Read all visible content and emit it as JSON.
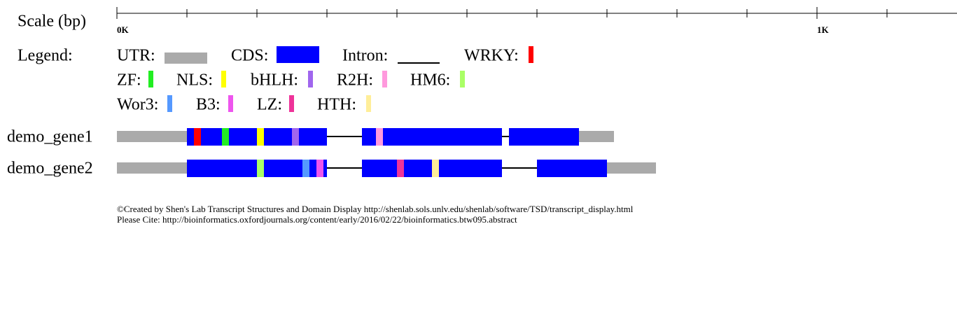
{
  "scale": {
    "label": "Scale (bp)",
    "xlim": [
      0,
      1200
    ],
    "labeled_ticks": [
      {
        "value": 0,
        "label": "0K"
      },
      {
        "value": 1000,
        "label": "1K"
      }
    ],
    "minor_ticks": [
      100,
      200,
      300,
      400,
      500,
      600,
      700,
      800,
      900,
      1100
    ]
  },
  "legend": {
    "title": "Legend:",
    "items": [
      {
        "label": "UTR:",
        "color": "#aaaaaa"
      },
      {
        "label": "CDS:",
        "color": "#0000ff"
      },
      {
        "label": "Intron:",
        "color": "#000000"
      },
      {
        "label": "WRKY:",
        "color": "#ff0000"
      },
      {
        "label": "ZF:",
        "color": "#22ee22"
      },
      {
        "label": "NLS:",
        "color": "#ffff00"
      },
      {
        "label": "bHLH:",
        "color": "#a066ee"
      },
      {
        "label": "R2H:",
        "color": "#ff99dd"
      },
      {
        "label": "HM6:",
        "color": "#aaff66"
      },
      {
        "label": "Wor3:",
        "color": "#5599ff"
      },
      {
        "label": "B3:",
        "color": "#ee55ee"
      },
      {
        "label": "LZ:",
        "color": "#ee3399"
      },
      {
        "label": "HTH:",
        "color": "#ffee99"
      }
    ]
  },
  "genes": [
    {
      "name": "demo_gene1",
      "utr": [
        [
          0,
          100
        ],
        [
          660,
          710
        ]
      ],
      "cds": [
        [
          100,
          300
        ],
        [
          350,
          550
        ],
        [
          560,
          660
        ]
      ],
      "introns": [
        [
          300,
          350
        ],
        [
          550,
          560
        ]
      ],
      "domains": [
        {
          "start": 110,
          "end": 120,
          "color": "#ff0000"
        },
        {
          "start": 150,
          "end": 160,
          "color": "#22ee22"
        },
        {
          "start": 200,
          "end": 210,
          "color": "#ffff00"
        },
        {
          "start": 250,
          "end": 260,
          "color": "#a066ee"
        },
        {
          "start": 370,
          "end": 380,
          "color": "#ff99dd"
        }
      ]
    },
    {
      "name": "demo_gene2",
      "utr": [
        [
          0,
          100
        ],
        [
          700,
          770
        ]
      ],
      "cds": [
        [
          100,
          300
        ],
        [
          350,
          550
        ],
        [
          600,
          700
        ]
      ],
      "introns": [
        [
          300,
          350
        ],
        [
          550,
          600
        ]
      ],
      "domains": [
        {
          "start": 200,
          "end": 210,
          "color": "#aaff66"
        },
        {
          "start": 265,
          "end": 275,
          "color": "#5599ff"
        },
        {
          "start": 285,
          "end": 295,
          "color": "#ee55ee"
        },
        {
          "start": 400,
          "end": 410,
          "color": "#ee3399"
        },
        {
          "start": 450,
          "end": 460,
          "color": "#ffee99"
        }
      ]
    }
  ],
  "footer": [
    "©Created by Shen's Lab Transcript Structures and Domain Display http://shenlab.sols.unlv.edu/shenlab/software/TSD/transcript_display.html",
    "Please Cite: http://bioinformatics.oxfordjournals.org/content/early/2016/02/22/bioinformatics.btw095.abstract"
  ]
}
